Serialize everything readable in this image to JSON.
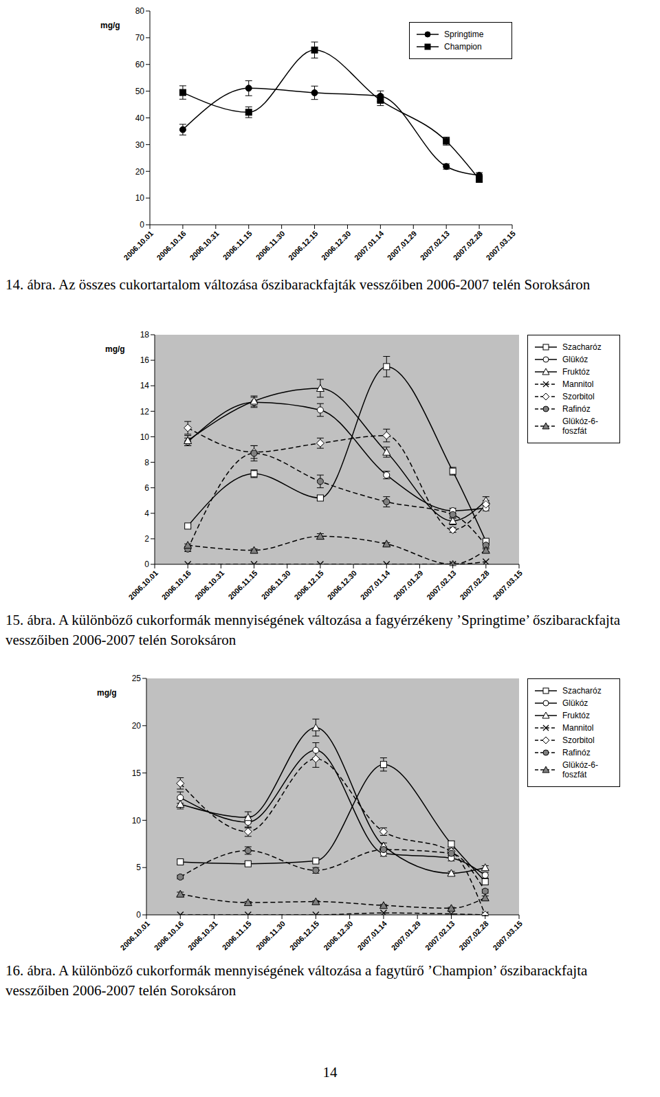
{
  "chart_data": [
    {
      "type": "line",
      "title": "14. ábra. Az összes cukortartalom változása őszibarackfajták vesszőiben 2006-2007 telén Soroksáron",
      "ylabel": "mg/g",
      "categories": [
        "2006.10.01",
        "2006.10.16",
        "2006.10.31",
        "2006.11.15",
        "2006.11.30",
        "2006.12.15",
        "2006.12.30",
        "2007.01.14",
        "2007.01.29",
        "2007.02.13",
        "2007.02.28",
        "2007.03.15"
      ],
      "ylim": [
        0,
        80
      ],
      "yticks": [
        0,
        10,
        20,
        30,
        40,
        50,
        60,
        70,
        80
      ],
      "grid": false,
      "legend": "upper right",
      "series": [
        {
          "name": "Springtime",
          "color": "#000000",
          "marker": "circle",
          "line_style": "solid",
          "values": [
            null,
            35.6,
            null,
            51.1,
            null,
            49.4,
            null,
            48.1,
            null,
            21.8,
            18.5,
            null
          ],
          "errors": [
            null,
            2.0,
            null,
            2.8,
            null,
            2.5,
            null,
            2.0,
            null,
            1.0,
            1.0,
            null
          ]
        },
        {
          "name": "Champion",
          "color": "#000000",
          "marker": "square",
          "line_style": "solid",
          "values": [
            null,
            49.5,
            null,
            42.1,
            null,
            65.4,
            null,
            46.6,
            null,
            31.3,
            17.0,
            null
          ],
          "errors": [
            null,
            2.5,
            null,
            2.0,
            null,
            3.0,
            null,
            2.0,
            null,
            1.5,
            1.0,
            null
          ]
        }
      ]
    },
    {
      "type": "line",
      "title": "15. ábra. A különböző cukorformák mennyiségének változása a fagyérzékeny ’Springtime’ őszibarackfajta vesszőiben 2006-2007 telén Soroksáron",
      "ylabel": "mg/g",
      "categories": [
        "2006.10.01",
        "2006.10.16",
        "2006.10.31",
        "2006.11.15",
        "2006.11.30",
        "2006.12.15",
        "2006.12.30",
        "2007.01.14",
        "2007.01.29",
        "2007.02.13",
        "2007.02.28",
        "2007.03.15"
      ],
      "ylim": [
        0,
        18
      ],
      "yticks": [
        0,
        2,
        4,
        6,
        8,
        10,
        12,
        14,
        16,
        18
      ],
      "grid": false,
      "legend": "right",
      "series": [
        {
          "name": "Szacharóz",
          "color": "#000000",
          "marker": "square_open",
          "line_style": "solid",
          "values": [
            null,
            3.0,
            null,
            7.1,
            null,
            5.2,
            null,
            15.5,
            null,
            7.3,
            1.8,
            null
          ],
          "errors": [
            null,
            0.1,
            null,
            0.3,
            null,
            0.2,
            null,
            0.8,
            null,
            0.3,
            0.1,
            null
          ]
        },
        {
          "name": "Glükóz",
          "color": "#000000",
          "marker": "circle_open",
          "line_style": "solid",
          "values": [
            null,
            9.6,
            null,
            12.7,
            null,
            12.1,
            null,
            7.0,
            null,
            4.2,
            4.4,
            null
          ],
          "errors": [
            null,
            0.3,
            null,
            0.4,
            null,
            0.5,
            null,
            0.3,
            null,
            0.2,
            0.2,
            null
          ]
        },
        {
          "name": "Fruktóz",
          "color": "#000000",
          "marker": "triangle_open",
          "line_style": "solid",
          "values": [
            null,
            9.7,
            null,
            12.8,
            null,
            13.8,
            null,
            8.8,
            null,
            3.4,
            5.0,
            null
          ],
          "errors": [
            null,
            0.4,
            null,
            0.4,
            null,
            0.7,
            null,
            0.4,
            null,
            0.3,
            0.3,
            null
          ]
        },
        {
          "name": "Mannitol",
          "color": "#000000",
          "marker": "cross",
          "line_style": "dashed",
          "values": [
            null,
            0,
            null,
            0,
            null,
            0,
            null,
            0,
            null,
            0,
            0.2,
            null
          ]
        },
        {
          "name": "Szorbitol",
          "color": "#000000",
          "marker": "diamond_open",
          "line_style": "dashed",
          "values": [
            null,
            10.7,
            null,
            8.8,
            null,
            9.5,
            null,
            10.1,
            null,
            2.7,
            4.7,
            null
          ],
          "errors": [
            null,
            0.5,
            null,
            0.5,
            null,
            0.4,
            null,
            0.5,
            null,
            0.2,
            0.3,
            null
          ]
        },
        {
          "name": "Rafinóz",
          "color": "#000000",
          "marker": "circle_gray",
          "line_style": "dashed",
          "values": [
            null,
            1.2,
            null,
            8.7,
            null,
            6.5,
            null,
            4.9,
            null,
            3.9,
            1.5,
            null
          ],
          "errors": [
            null,
            0.2,
            null,
            0.6,
            null,
            0.5,
            null,
            0.4,
            null,
            0.3,
            0.2,
            null
          ]
        },
        {
          "name": "Glükóz-6-foszfát",
          "color": "#000000",
          "marker": "triangle_gray",
          "line_style": "dashed",
          "values": [
            null,
            1.5,
            null,
            1.1,
            null,
            2.2,
            null,
            1.6,
            null,
            0.0,
            1.1,
            null
          ],
          "errors": [
            null,
            0.1,
            null,
            0.1,
            null,
            0.2,
            null,
            0.1,
            null,
            0.1,
            0.1,
            null
          ]
        }
      ]
    },
    {
      "type": "line",
      "title": "16. ábra. A különböző cukorformák mennyiségének változása a fagytűrő ’Champion’ őszibarackfajta vesszőiben 2006-2007 telén Soroksáron",
      "ylabel": "mg/g",
      "categories": [
        "2006.10.01",
        "2006.10.16",
        "2006.10.31",
        "2006.11.15",
        "2006.11.30",
        "2006.12.15",
        "2006.12.30",
        "2007.01.14",
        "2007.01.29",
        "2007.02.13",
        "2007.02.28",
        "2007.03.15"
      ],
      "ylim": [
        0,
        25
      ],
      "yticks": [
        0,
        5,
        10,
        15,
        20,
        25
      ],
      "grid": false,
      "legend": "right",
      "series": [
        {
          "name": "Szacharóz",
          "color": "#000000",
          "marker": "square_open",
          "line_style": "solid",
          "values": [
            null,
            5.6,
            null,
            5.4,
            null,
            5.7,
            null,
            15.9,
            null,
            7.5,
            3.5,
            null
          ],
          "errors": [
            null,
            0.2,
            null,
            0.2,
            null,
            0.2,
            null,
            0.7,
            null,
            0.3,
            0.3,
            null
          ]
        },
        {
          "name": "Glükóz",
          "color": "#000000",
          "marker": "circle_open",
          "line_style": "solid",
          "values": [
            null,
            12.4,
            null,
            9.8,
            null,
            17.4,
            null,
            6.5,
            null,
            6.0,
            4.2,
            null
          ],
          "errors": [
            null,
            0.6,
            null,
            0.6,
            null,
            0.8,
            null,
            0.3,
            null,
            0.3,
            0.3,
            null
          ]
        },
        {
          "name": "Fruktóz",
          "color": "#000000",
          "marker": "triangle_open",
          "line_style": "solid",
          "values": [
            null,
            11.7,
            null,
            10.3,
            null,
            19.8,
            null,
            7.3,
            null,
            4.4,
            5.0,
            null
          ],
          "errors": [
            null,
            0.5,
            null,
            0.6,
            null,
            0.9,
            null,
            0.3,
            null,
            0.2,
            0.2,
            null
          ]
        },
        {
          "name": "Mannitol",
          "color": "#000000",
          "marker": "cross",
          "line_style": "dashed",
          "values": [
            null,
            0,
            null,
            0,
            null,
            0,
            null,
            0.2,
            null,
            0.1,
            0,
            null
          ]
        },
        {
          "name": "Szorbitol",
          "color": "#000000",
          "marker": "diamond_open",
          "line_style": "dashed",
          "values": [
            null,
            13.9,
            null,
            8.8,
            null,
            16.5,
            null,
            8.8,
            null,
            6.7,
            0.0,
            null
          ],
          "errors": [
            null,
            0.6,
            null,
            0.5,
            null,
            0.9,
            null,
            0.4,
            null,
            0.3,
            0.1,
            null
          ]
        },
        {
          "name": "Rafinóz",
          "color": "#000000",
          "marker": "circle_gray",
          "line_style": "dashed",
          "values": [
            null,
            4.0,
            null,
            6.8,
            null,
            4.7,
            null,
            6.9,
            null,
            6.5,
            2.5,
            null
          ],
          "errors": [
            null,
            0.2,
            null,
            0.4,
            null,
            0.3,
            null,
            0.3,
            null,
            0.3,
            0.2,
            null
          ]
        },
        {
          "name": "Glükóz-6-foszfát",
          "color": "#000000",
          "marker": "triangle_gray",
          "line_style": "dashed",
          "values": [
            null,
            2.2,
            null,
            1.3,
            null,
            1.4,
            null,
            1.0,
            null,
            0.7,
            1.8,
            null
          ],
          "errors": [
            null,
            0.2,
            null,
            0.1,
            null,
            0.1,
            null,
            0.1,
            null,
            0.1,
            0.2,
            null
          ]
        }
      ]
    }
  ],
  "page": "14"
}
